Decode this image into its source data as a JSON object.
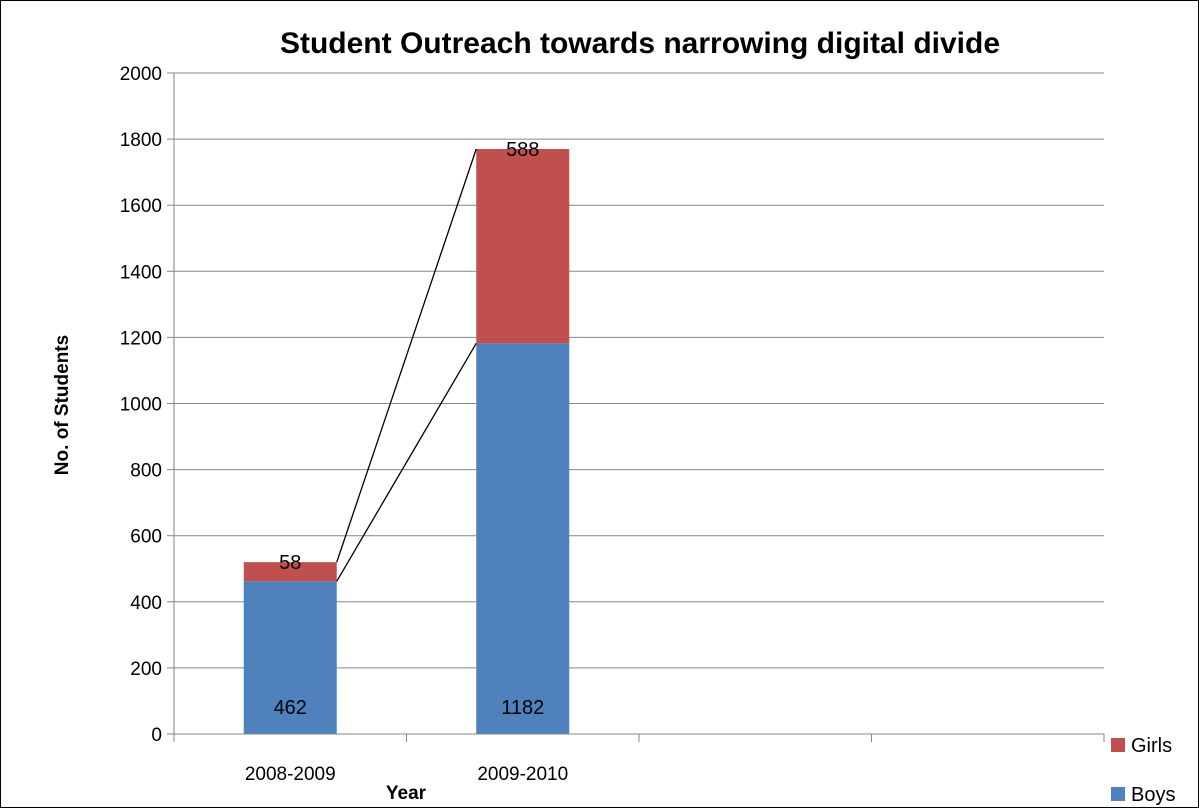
{
  "chart_data": {
    "type": "bar",
    "stacked": true,
    "title": "Student Outreach towards narrowing digital divide",
    "xlabel": "Year",
    "ylabel": "No. of Students",
    "categories": [
      "2008-2009",
      "2009-2010",
      "",
      ""
    ],
    "series": [
      {
        "name": "Boys",
        "values": [
          462,
          1182,
          null,
          null
        ],
        "color": "#4F81BD"
      },
      {
        "name": "Girls",
        "values": [
          58,
          588,
          null,
          null
        ],
        "color": "#C0504D"
      }
    ],
    "ylim": [
      0,
      2000
    ],
    "yticks": [
      "0",
      "200",
      "400",
      "600",
      "800",
      "1000",
      "1200",
      "1400",
      "1600",
      "1800",
      "2000"
    ],
    "grid": true,
    "series_lines": true,
    "legend_position": "right"
  }
}
